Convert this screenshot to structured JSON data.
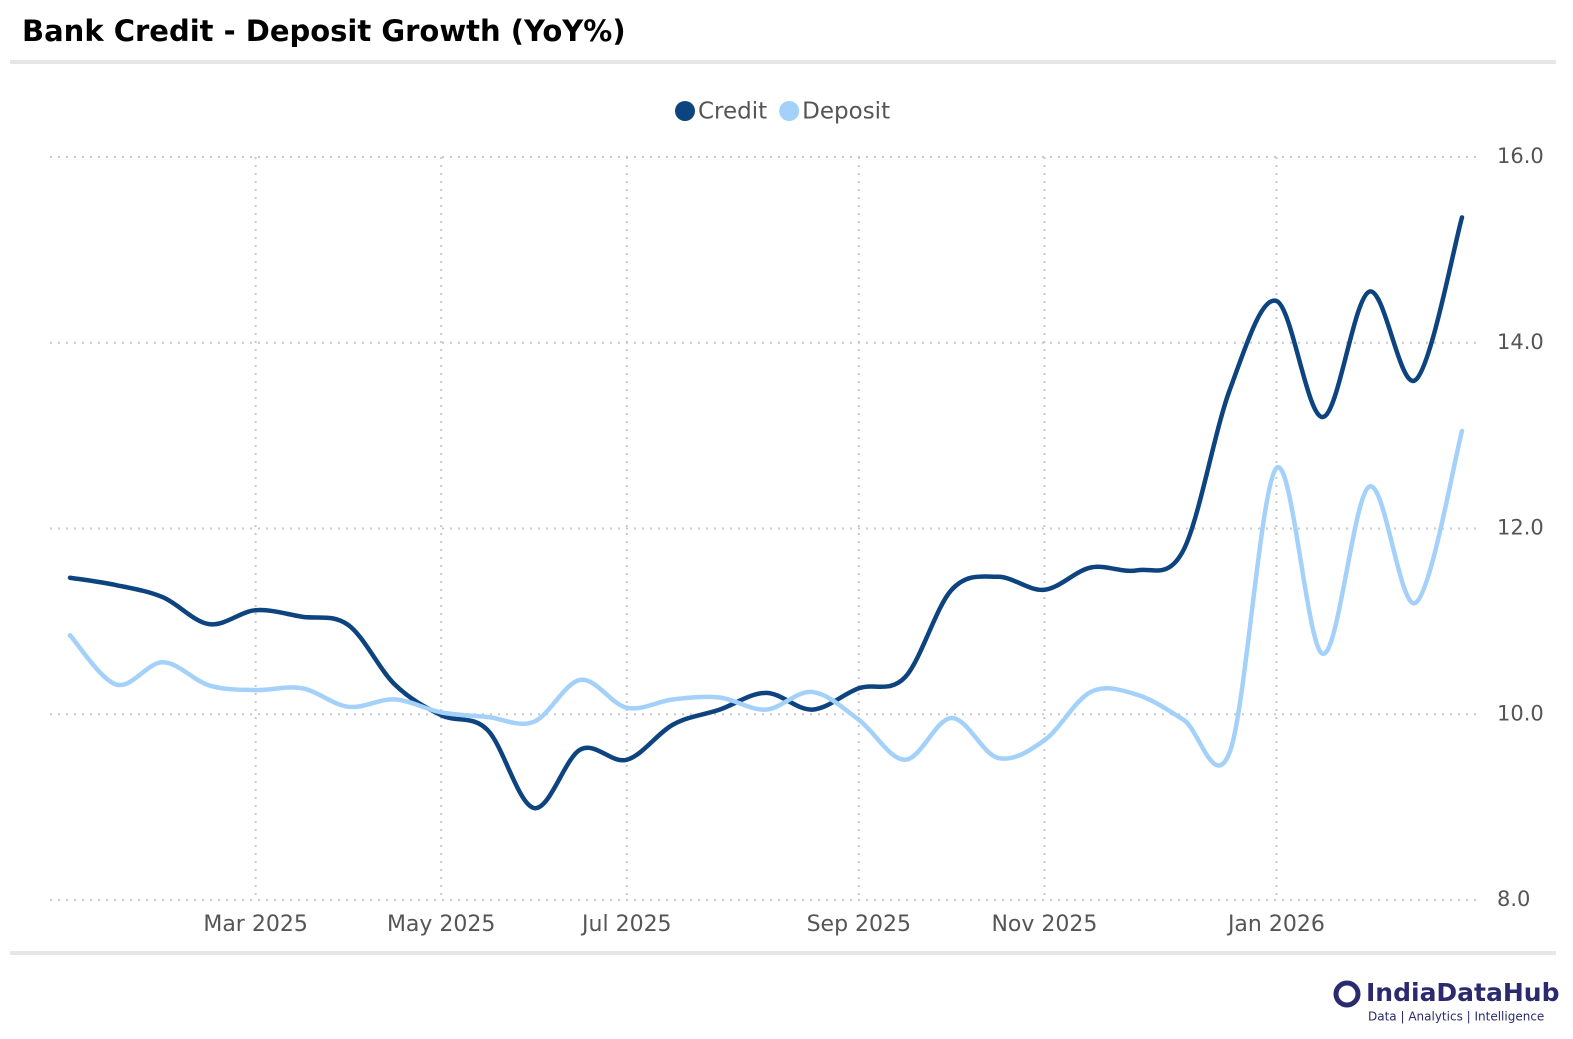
{
  "chart_data": {
    "type": "line",
    "title": "Bank Credit - Deposit Growth (YoY%)",
    "categories": [
      null,
      null,
      null,
      null,
      "Mar 2025",
      null,
      null,
      null,
      "May 2025",
      null,
      null,
      null,
      "Jul 2025",
      null,
      null,
      null,
      null,
      "Sep 2025",
      null,
      null,
      null,
      "Nov 2025",
      null,
      null,
      null,
      null,
      "Jan 2026",
      null,
      null,
      null,
      null
    ],
    "series": [
      {
        "name": "Credit",
        "color": "#0d4480",
        "values": [
          11.47,
          11.39,
          11.26,
          10.97,
          11.12,
          11.05,
          10.96,
          10.32,
          9.99,
          9.83,
          8.99,
          9.62,
          9.51,
          9.89,
          10.05,
          10.23,
          10.05,
          10.28,
          10.4,
          11.34,
          11.48,
          11.34,
          11.58,
          11.55,
          11.77,
          13.5,
          14.45,
          13.2,
          14.55,
          13.6,
          15.35
        ]
      },
      {
        "name": "Deposit",
        "color": "#a3d1fa",
        "values": [
          10.85,
          10.32,
          10.56,
          10.31,
          10.26,
          10.28,
          10.08,
          10.16,
          10.02,
          9.97,
          9.92,
          10.37,
          10.07,
          10.16,
          10.18,
          10.05,
          10.24,
          9.94,
          9.51,
          9.96,
          9.53,
          9.72,
          10.24,
          10.21,
          9.94,
          9.6,
          12.65,
          10.65,
          12.45,
          11.2,
          13.05
        ]
      }
    ],
    "ylim": [
      8,
      16
    ],
    "yticks": [
      {
        "value": 8,
        "label": "8.0"
      },
      {
        "value": 10,
        "label": "10.0"
      },
      {
        "value": 12,
        "label": "12.0"
      },
      {
        "value": 14,
        "label": "14.0"
      },
      {
        "value": 16,
        "label": "16.0"
      }
    ],
    "grid": true,
    "legend": "top",
    "brand": "IndiaDataHub",
    "tagline": "Data | Analytics | Intelligence"
  }
}
